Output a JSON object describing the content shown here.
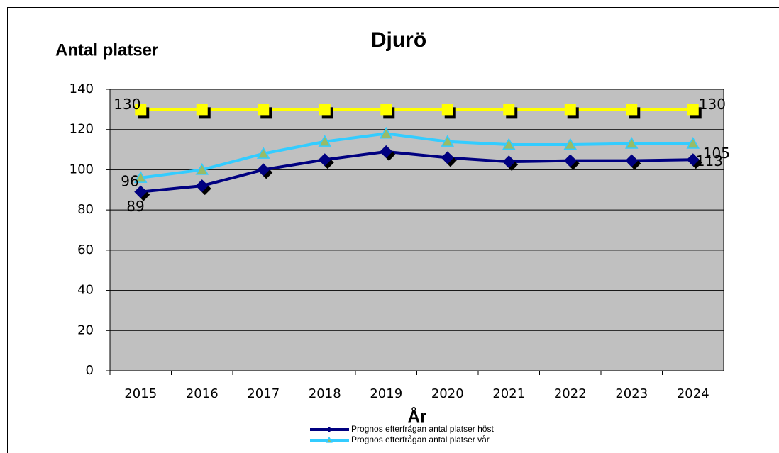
{
  "chart_data": {
    "type": "line",
    "title": "Djurö",
    "y_label": "Antal platser",
    "x_label": "År",
    "categories": [
      "2015",
      "2016",
      "2017",
      "2018",
      "2019",
      "2020",
      "2021",
      "2022",
      "2023",
      "2024"
    ],
    "series": [
      {
        "color": "#ffff00",
        "marker": "square",
        "values": [
          130,
          130,
          130,
          130,
          130,
          130,
          130,
          130,
          130,
          130
        ],
        "value_labels": [
          "130",
          null,
          null,
          null,
          null,
          null,
          null,
          null,
          null,
          "130"
        ]
      },
      {
        "name": "Prognos efterfrågan antal platser vår",
        "color": "#33ccff",
        "marker": "triangle",
        "values": [
          96,
          100,
          108,
          114,
          118,
          114,
          112.5,
          112.5,
          113,
          113
        ],
        "value_labels": [
          "96",
          null,
          null,
          null,
          null,
          null,
          null,
          null,
          null,
          "113"
        ]
      },
      {
        "name": "Prognos efterfrågan antal platser höst",
        "color": "#000080",
        "marker": "diamond",
        "values": [
          89,
          92,
          100,
          105,
          109,
          106,
          104,
          104.5,
          104.5,
          105
        ],
        "value_labels": [
          "89",
          null,
          null,
          null,
          null,
          null,
          null,
          null,
          null,
          "105"
        ]
      }
    ],
    "ylim": [
      0,
      140
    ],
    "yticks": [
      0,
      20,
      40,
      60,
      80,
      100,
      120,
      140
    ],
    "grid": true,
    "legend": "bottom"
  }
}
